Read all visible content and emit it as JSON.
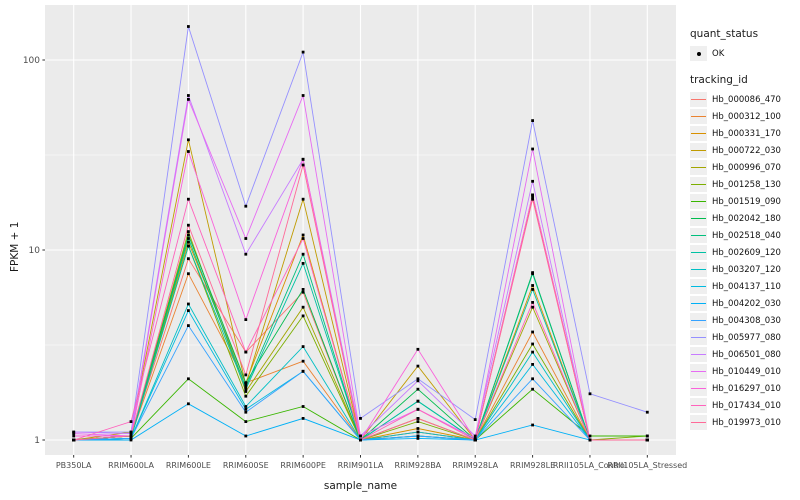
{
  "figure": {
    "panel_background": "#EBEBEB",
    "grid_color": "#FFFFFF",
    "tick_label_color": "#4D4D4D",
    "point_color": "#000000"
  },
  "legend": {
    "quant_status": {
      "title": "quant_status",
      "items": [
        {
          "label": "OK",
          "symbol": "black-point"
        }
      ]
    },
    "tracking_id": {
      "title": "tracking_id"
    }
  },
  "chart_data": {
    "type": "line",
    "title": "",
    "xlabel": "sample_name",
    "ylabel": "FPKM + 1",
    "y_scale": "log10",
    "ylim": [
      1,
      200
    ],
    "y_ticks": {
      "values": [
        1,
        10,
        100
      ],
      "labels": [
        "1",
        "10",
        "100"
      ]
    },
    "y_minor": [
      3.1623,
      31.623
    ],
    "grid": true,
    "legend_position": "right",
    "x_categories": [
      "PB350LA",
      "RRIM600LA",
      "RRIM600LE",
      "RRIM600SE",
      "RRIM600PE",
      "RRIM901LA",
      "RRIM928BA",
      "RRIM928LA",
      "RRIM928LE",
      "RRII105LA_Control",
      "RRII105LA_Stressed"
    ],
    "series": [
      {
        "name": "Hb_000086_470",
        "color": "#F8766D",
        "values": [
          1.0,
          1.05,
          9.0,
          2.9,
          6.0,
          1.0,
          1.1,
          1.0,
          19.5,
          1.0,
          1.0
        ]
      },
      {
        "name": "Hb_000312_100",
        "color": "#EA8331",
        "values": [
          1.0,
          1.05,
          7.5,
          2.0,
          2.6,
          1.0,
          1.1,
          1.0,
          3.7,
          1.0,
          1.0
        ]
      },
      {
        "name": "Hb_000331_170",
        "color": "#D89000",
        "values": [
          1.0,
          1.05,
          11.0,
          2.0,
          12.0,
          1.0,
          1.15,
          1.0,
          6.5,
          1.0,
          1.0
        ]
      },
      {
        "name": "Hb_000722_030",
        "color": "#C09B00",
        "values": [
          1.0,
          1.1,
          38.0,
          1.95,
          18.5,
          1.0,
          2.45,
          1.0,
          19.0,
          1.0,
          1.0
        ]
      },
      {
        "name": "Hb_000996_070",
        "color": "#A3A500",
        "values": [
          1.0,
          1.05,
          12.5,
          1.8,
          5.0,
          1.0,
          1.3,
          1.0,
          5.0,
          1.0,
          1.0
        ]
      },
      {
        "name": "Hb_001258_130",
        "color": "#7CAE00",
        "values": [
          1.0,
          1.05,
          10.5,
          1.7,
          4.5,
          1.0,
          1.25,
          1.0,
          3.2,
          1.0,
          1.05
        ]
      },
      {
        "name": "Hb_001519_090",
        "color": "#39B600",
        "values": [
          1.0,
          1.02,
          2.1,
          1.25,
          1.5,
          1.0,
          1.05,
          1.0,
          1.85,
          1.05,
          1.05
        ]
      },
      {
        "name": "Hb_002042_180",
        "color": "#00BB4E",
        "values": [
          1.0,
          1.05,
          12.0,
          2.0,
          6.2,
          1.0,
          1.85,
          1.0,
          7.6,
          1.0,
          1.0
        ]
      },
      {
        "name": "Hb_002518_040",
        "color": "#00BF7D",
        "values": [
          1.0,
          1.05,
          11.5,
          1.9,
          9.5,
          1.0,
          1.6,
          1.0,
          7.5,
          1.0,
          1.0
        ]
      },
      {
        "name": "Hb_002609_120",
        "color": "#00C1A3",
        "values": [
          1.0,
          1.02,
          10.5,
          1.85,
          8.5,
          1.0,
          1.6,
          1.0,
          6.2,
          1.0,
          1.0
        ]
      },
      {
        "name": "Hb_003207_120",
        "color": "#00BFC4",
        "values": [
          1.0,
          1.02,
          5.2,
          1.5,
          3.1,
          1.0,
          1.1,
          1.0,
          2.9,
          1.0,
          1.0
        ]
      },
      {
        "name": "Hb_004137_110",
        "color": "#00BAE0",
        "values": [
          1.0,
          1.02,
          4.8,
          1.45,
          2.3,
          1.0,
          1.05,
          1.0,
          2.5,
          1.0,
          1.0
        ]
      },
      {
        "name": "Hb_004202_030",
        "color": "#00B0F6",
        "values": [
          1.0,
          1.0,
          1.55,
          1.05,
          1.3,
          1.0,
          1.02,
          1.0,
          1.2,
          1.0,
          1.0
        ]
      },
      {
        "name": "Hb_004308_030",
        "color": "#35A2FF",
        "values": [
          1.0,
          1.02,
          4.0,
          1.4,
          2.3,
          1.0,
          1.05,
          1.0,
          2.1,
          1.0,
          1.0
        ]
      },
      {
        "name": "Hb_005977_080",
        "color": "#9590FF",
        "values": [
          1.1,
          1.1,
          150.0,
          17.0,
          110.0,
          1.3,
          2.1,
          1.28,
          48.0,
          1.75,
          1.4
        ]
      },
      {
        "name": "Hb_006501_080",
        "color": "#C77CFF",
        "values": [
          1.1,
          1.08,
          65.0,
          9.5,
          30.0,
          1.05,
          2.05,
          1.05,
          23.0,
          1.0,
          1.0
        ]
      },
      {
        "name": "Hb_010449_010",
        "color": "#E76BF3",
        "values": [
          1.08,
          1.05,
          62.0,
          11.5,
          65.0,
          1.05,
          1.45,
          1.02,
          34.0,
          1.0,
          1.0
        ]
      },
      {
        "name": "Hb_016297_010",
        "color": "#FA62DB",
        "values": [
          1.05,
          1.05,
          33.0,
          4.3,
          30.0,
          1.0,
          3.0,
          1.0,
          19.5,
          1.0,
          1.0
        ]
      },
      {
        "name": "Hb_017434_010",
        "color": "#FF62BC",
        "values": [
          1.0,
          1.25,
          18.5,
          2.9,
          11.5,
          1.0,
          1.45,
          1.0,
          5.3,
          1.0,
          1.0
        ]
      },
      {
        "name": "Hb_019973_010",
        "color": "#FF6A98",
        "values": [
          1.0,
          1.05,
          13.5,
          2.2,
          28.0,
          1.0,
          1.3,
          1.0,
          18.5,
          1.0,
          1.0
        ]
      }
    ]
  }
}
